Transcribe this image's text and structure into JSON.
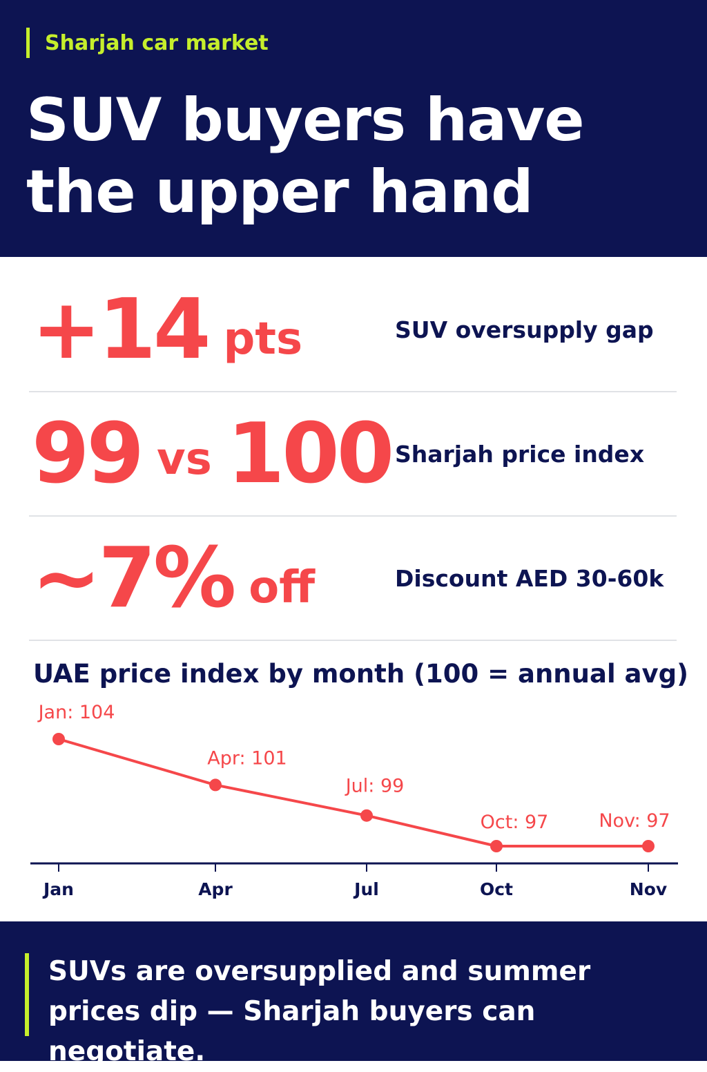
{
  "colors": {
    "navy": "#0d1452",
    "accent_green": "#c6ee2c",
    "coral": "#f5474a",
    "white": "#ffffff"
  },
  "header": {
    "kicker": "Sharjah car market",
    "headline": "SUV buyers have the upper hand"
  },
  "stats": [
    {
      "value_main": "+14",
      "value_unit": "pts",
      "label": "SUV oversupply gap"
    },
    {
      "value_left": "99",
      "value_mid": "vs",
      "value_right": "100",
      "label": "Sharjah price index"
    },
    {
      "value_main": "~7%",
      "value_unit": "off",
      "label": "Discount AED 30-60k"
    }
  ],
  "chart_data": {
    "type": "line",
    "title": "UAE price index by month (100 = annual avg)",
    "categories": [
      "Jan",
      "Apr",
      "Jul",
      "Oct",
      "Nov"
    ],
    "values": [
      104,
      101,
      99,
      97,
      97
    ],
    "data_labels": [
      "Jan: 104",
      "Apr: 101",
      "Jul: 99",
      "Oct: 97",
      "Nov: 97"
    ],
    "xlabel": "",
    "ylabel": "",
    "grid": false,
    "legend": "none",
    "color": "#f5474a"
  },
  "footer": {
    "text": "SUVs are oversupplied and summer prices dip — Sharjah buyers can negotiate."
  }
}
